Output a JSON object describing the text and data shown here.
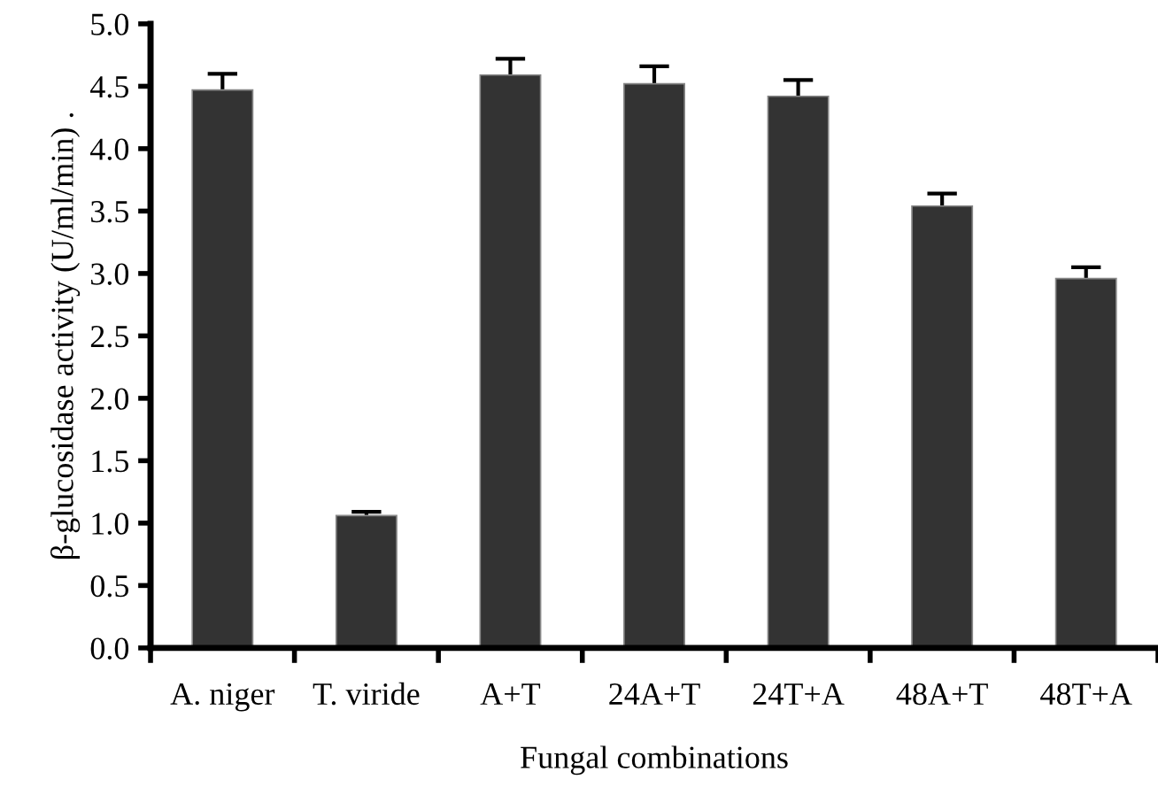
{
  "chart_data": {
    "type": "bar",
    "xlabel": "Fungal combinations",
    "ylabel": "β-glucosidase activity (U/ml/min) .",
    "categories": [
      "A. niger",
      "T. viride",
      "A+T",
      "24A+T",
      "24T+A",
      "48A+T",
      "48T+A"
    ],
    "values": [
      4.47,
      1.06,
      4.59,
      4.52,
      4.42,
      3.54,
      2.96
    ],
    "errors": [
      0.13,
      0.03,
      0.13,
      0.14,
      0.13,
      0.1,
      0.09
    ],
    "color": "#333333",
    "ylim": [
      0,
      5
    ],
    "yticks": [
      {
        "value": 0,
        "label": "0.0"
      },
      {
        "value": 0.5,
        "label": "0.5"
      },
      {
        "value": 1,
        "label": "1.0"
      },
      {
        "value": 1.5,
        "label": "1.5"
      },
      {
        "value": 2,
        "label": "2.0"
      },
      {
        "value": 2.5,
        "label": "2.5"
      },
      {
        "value": 3,
        "label": "3.0"
      },
      {
        "value": 3.5,
        "label": "3.5"
      },
      {
        "value": 4,
        "label": "4.0"
      },
      {
        "value": 4.5,
        "label": "4.5"
      },
      {
        "value": 5,
        "label": "5.0"
      }
    ],
    "grid": false
  }
}
